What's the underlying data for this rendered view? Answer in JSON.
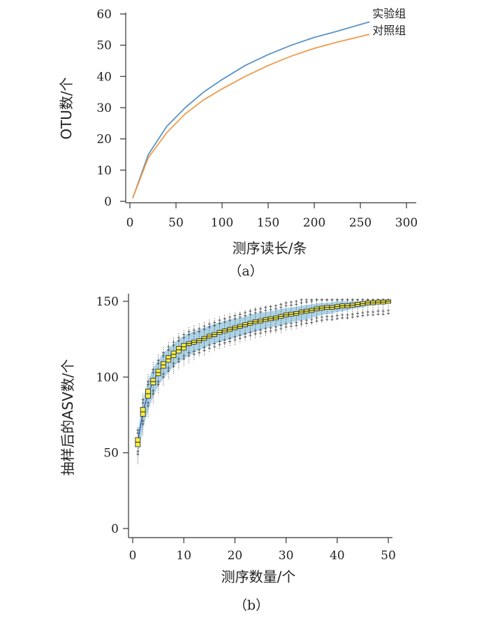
{
  "chart_data": [
    {
      "type": "line",
      "caption": "（a）",
      "xlabel": "测序读长/条",
      "ylabel": "OTU数/个",
      "xlim": [
        0,
        300
      ],
      "ylim": [
        0,
        60
      ],
      "xticks": [
        0,
        50,
        100,
        150,
        200,
        250,
        300
      ],
      "yticks": [
        0,
        10,
        20,
        30,
        40,
        50,
        60
      ],
      "legend_placement": "top-right (labels at line ends)",
      "grid": false,
      "x": [
        3,
        20,
        40,
        60,
        80,
        100,
        125,
        150,
        175,
        200,
        225,
        260
      ],
      "series": [
        {
          "name": "实验组",
          "color": "#5b93c4",
          "values": [
            1.0,
            15.0,
            24.0,
            30.0,
            35.0,
            39.0,
            43.5,
            47.0,
            50.0,
            52.5,
            54.5,
            57.5
          ]
        },
        {
          "name": "对照组",
          "color": "#ef9b4d",
          "values": [
            1.0,
            14.0,
            22.0,
            28.0,
            32.5,
            36.0,
            40.0,
            43.5,
            46.5,
            49.0,
            51.0,
            53.5
          ]
        }
      ]
    },
    {
      "type": "boxplot",
      "caption": "（b）",
      "xlabel": "测序数量/个",
      "ylabel": "抽样后的ASV数/个",
      "xlim": [
        0,
        50
      ],
      "ylim": [
        0,
        150
      ],
      "xticks": [
        0,
        10,
        20,
        30,
        40,
        50
      ],
      "yticks": [
        0,
        50,
        100,
        150
      ],
      "grid": false,
      "band_color": "#9dcbe4",
      "box_color": "#f4ee45",
      "line_color": "#2a4aa0",
      "x": [
        1,
        2,
        3,
        4,
        5,
        6,
        7,
        8,
        9,
        10,
        11,
        12,
        13,
        14,
        15,
        16,
        17,
        18,
        19,
        20,
        21,
        22,
        23,
        24,
        25,
        26,
        27,
        28,
        29,
        30,
        31,
        32,
        33,
        34,
        35,
        36,
        37,
        38,
        39,
        40,
        41,
        42,
        43,
        44,
        45,
        46,
        47,
        48,
        49,
        50
      ],
      "median": [
        57,
        77,
        89,
        97,
        103,
        108,
        112,
        115,
        118,
        120,
        122,
        123,
        124,
        125.5,
        127,
        128,
        129.5,
        130.5,
        131.5,
        132.5,
        133.5,
        134.5,
        135.5,
        136.5,
        137,
        138,
        138.5,
        139,
        140,
        141,
        141.5,
        142,
        143,
        143.5,
        144,
        145,
        145.5,
        146,
        146,
        146.5,
        147,
        147,
        147.5,
        148,
        148.5,
        149,
        149,
        149.5,
        149.5,
        150
      ],
      "lower_band": [
        47,
        66,
        78,
        87,
        94,
        99,
        103,
        107,
        110,
        112,
        114,
        116,
        118,
        119,
        121,
        122,
        123,
        124,
        125,
        126,
        127,
        128,
        129,
        130,
        131,
        132,
        133,
        133.5,
        134,
        135,
        136,
        137,
        137.5,
        138,
        139,
        140,
        141,
        141.5,
        142,
        143,
        143.5,
        144,
        145,
        145.5,
        146,
        147,
        147.5,
        148,
        149,
        150
      ],
      "upper_band": [
        63,
        85,
        98,
        106,
        111,
        116,
        119,
        122,
        125,
        127,
        129,
        130,
        131.5,
        132.5,
        134,
        135,
        136,
        137,
        138,
        138.5,
        139,
        140,
        141,
        142,
        142.5,
        143,
        143.5,
        144,
        145,
        145.5,
        146,
        146.5,
        147,
        147.5,
        148,
        148.5,
        149,
        149,
        149.5,
        150,
        150,
        150,
        150,
        150,
        150,
        150,
        150,
        150,
        150,
        150
      ]
    }
  ]
}
